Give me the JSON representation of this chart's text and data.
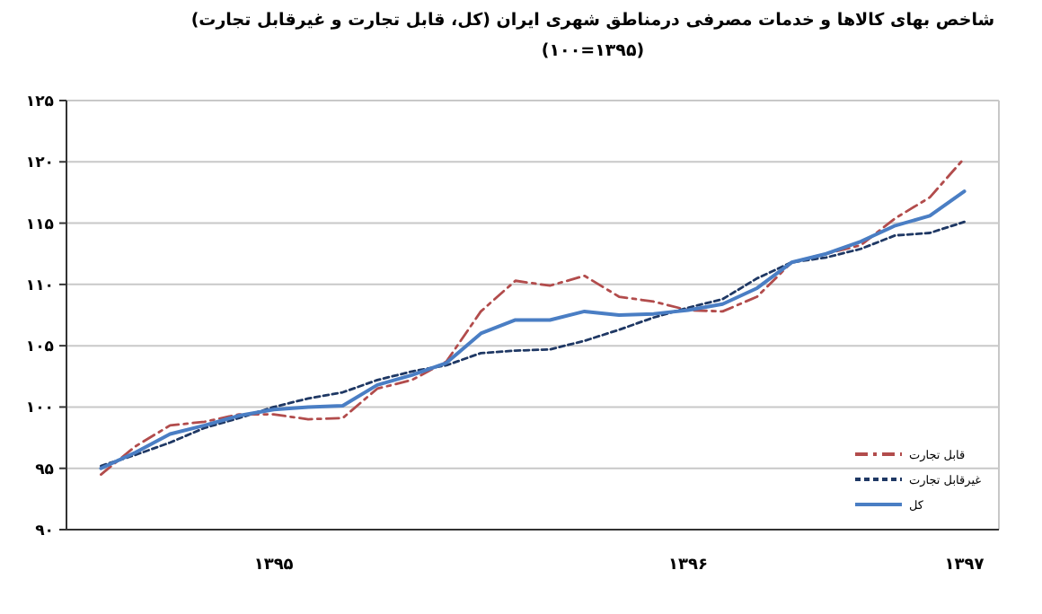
{
  "chart_data": {
    "type": "line",
    "title": "شاخص بهای کالاها و خدمات مصرفی  درمناطق شهری ایران (کل، قابل تجارت و غیرقابل تجارت)",
    "subtitle": "(۱۰۰=۱۳۹۵)",
    "categories": [
      null,
      null,
      null,
      null,
      null,
      "۱۳۹۵",
      null,
      null,
      null,
      null,
      null,
      null,
      null,
      null,
      null,
      null,
      null,
      "۱۳۹۶",
      null,
      null,
      null,
      null,
      null,
      null,
      null,
      "۱۳۹۷"
    ],
    "ylim": [
      90,
      125
    ],
    "yticks": [
      {
        "value": 90,
        "label": "۹۰"
      },
      {
        "value": 95,
        "label": "۹۵"
      },
      {
        "value": 100,
        "label": "۱۰۰"
      },
      {
        "value": 105,
        "label": "۱۰۵"
      },
      {
        "value": 110,
        "label": "۱۱۰"
      },
      {
        "value": 115,
        "label": "۱۱۵"
      },
      {
        "value": 120,
        "label": "۱۲۰"
      },
      {
        "value": 125,
        "label": "۱۲۵"
      }
    ],
    "grid": "y",
    "legend": "bottom right",
    "marker": "none",
    "series": [
      {
        "name": "قابل تجارت",
        "color": "#b24c4c",
        "line_style": "dashed",
        "values": [
          94.5,
          96.8,
          98.5,
          98.8,
          99.4,
          99.4,
          99.0,
          99.1,
          101.5,
          102.2,
          103.7,
          107.8,
          110.3,
          109.9,
          110.7,
          109.0,
          108.6,
          107.9,
          107.8,
          109.0,
          111.8,
          112.5,
          113.2,
          115.4,
          117.1,
          120.3
        ]
      },
      {
        "name": "غیرقابل تجارت",
        "color": "#1f3864",
        "line_style": "dotted",
        "values": [
          95.2,
          96.1,
          97.1,
          98.3,
          99.1,
          100.0,
          100.7,
          101.2,
          102.2,
          102.9,
          103.4,
          104.4,
          104.6,
          104.7,
          105.4,
          106.3,
          107.3,
          108.1,
          108.8,
          110.5,
          111.8,
          112.2,
          112.9,
          114.0,
          114.2,
          115.1
        ]
      },
      {
        "name": "کل",
        "color": "#4a7ec4",
        "line_style": "solid",
        "values": [
          95.0,
          96.3,
          97.8,
          98.5,
          99.3,
          99.8,
          100.0,
          100.1,
          101.8,
          102.6,
          103.6,
          106.0,
          107.1,
          107.1,
          107.8,
          107.5,
          107.6,
          107.9,
          108.4,
          109.7,
          111.8,
          112.5,
          113.5,
          114.8,
          115.6,
          117.6
        ]
      }
    ]
  }
}
